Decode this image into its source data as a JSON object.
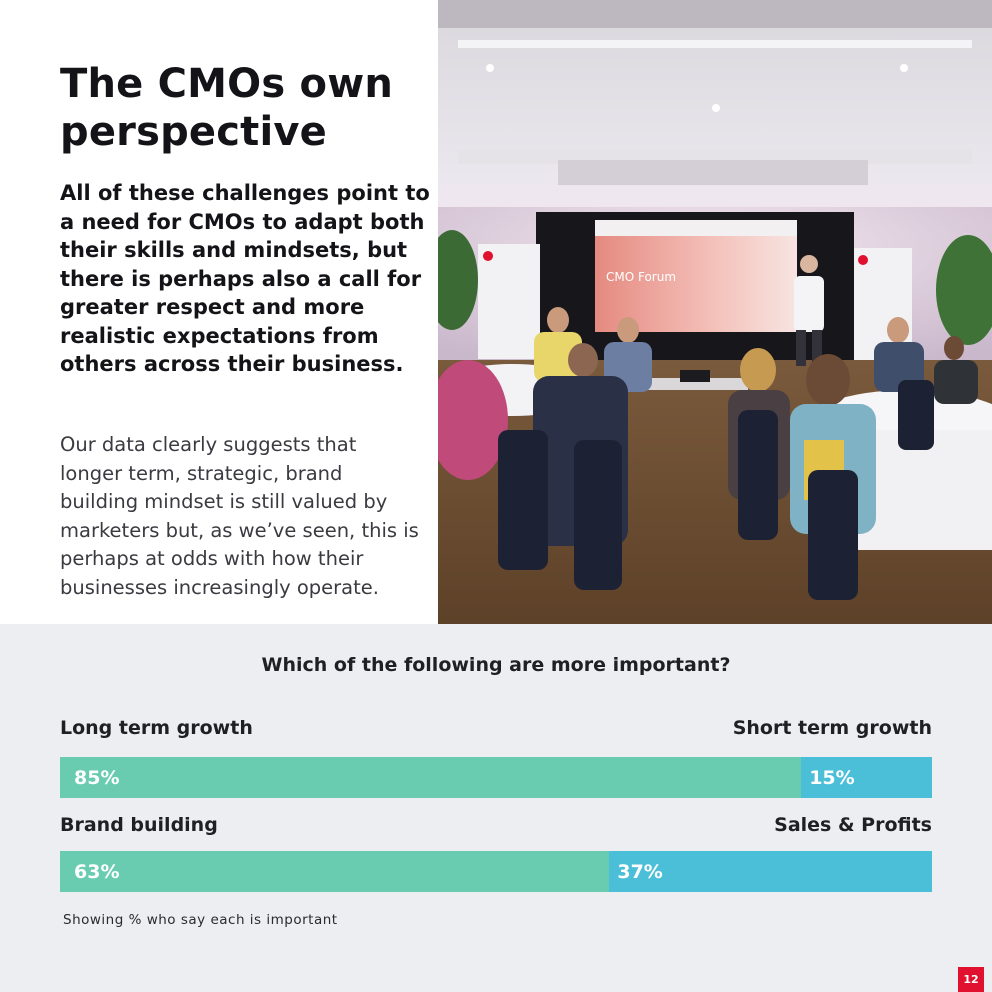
{
  "title": "The CMOs own perspective",
  "lead": "All of these challenges point to a need for CMOs to adapt both their skills and mindsets, but there is perhaps also a call for greater respect and more realistic expectations from others across their business.",
  "body": "Our data clearly suggests that longer term, strategic, brand building mindset is still valued by marketers but, as we’ve seen, this is perhaps at odds with how their businesses increasingly operate.",
  "photo": {
    "screen_text": "CMO Forum"
  },
  "survey": {
    "question": "Which of the following are more important?",
    "note": "Showing % who say each is important",
    "colors": {
      "left": "#69ccb0",
      "right": "#4bbfd7"
    },
    "rows": [
      {
        "left_label": "Long term growth",
        "right_label": "Short term growth",
        "left_value": 85,
        "right_value": 15,
        "left_text": "85%",
        "right_text": "15%"
      },
      {
        "left_label": "Brand building",
        "right_label": "Sales & Profits",
        "left_value": 63,
        "right_value": 37,
        "left_text": "63%",
        "right_text": "37%"
      }
    ]
  },
  "page_number": "12"
}
